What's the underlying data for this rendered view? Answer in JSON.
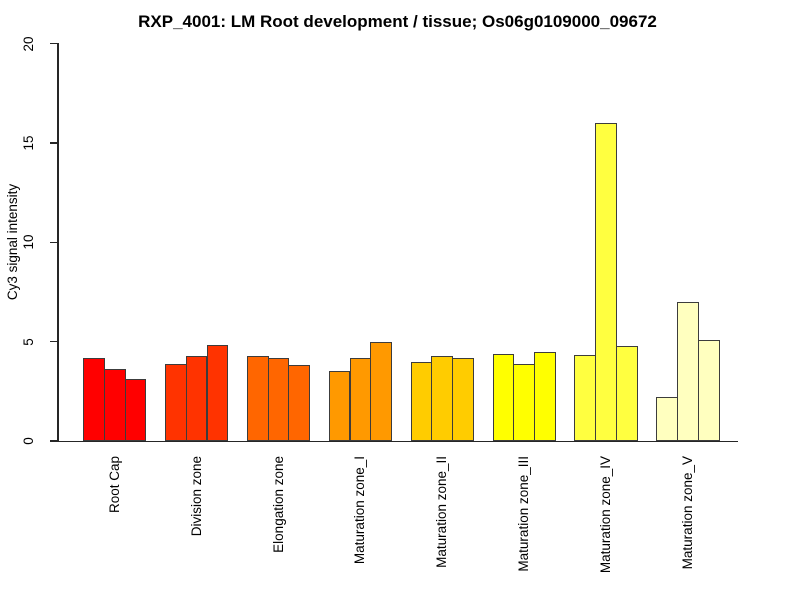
{
  "chart_data": {
    "type": "bar",
    "grouped": true,
    "bars_per_group": 3,
    "title": "RXP_4001: LM Root development / tissue; Os06g0109000_09672",
    "xlabel": "",
    "ylabel": "Cy3 signal intensity",
    "ylim": [
      0,
      20
    ],
    "yticks": [
      0,
      5,
      10,
      15,
      20
    ],
    "grid": false,
    "legend": "none",
    "background_color": "#FFFFFF",
    "axis_color": "#262626",
    "bar_border_color": "#3C3C3C",
    "groups": [
      {
        "label": "Root Cap",
        "color": "#FF0000",
        "values": [
          4.2,
          3.6,
          3.1
        ]
      },
      {
        "label": "Division zone",
        "color": "#FF3300",
        "values": [
          3.85,
          4.3,
          4.85
        ]
      },
      {
        "label": "Elongation zone",
        "color": "#FF6600",
        "values": [
          4.3,
          4.2,
          3.8
        ]
      },
      {
        "label": "Maturation zone_I",
        "color": "#FF9900",
        "values": [
          3.5,
          4.2,
          5.0
        ]
      },
      {
        "label": "Maturation zone_II",
        "color": "#FFCC00",
        "values": [
          3.95,
          4.3,
          4.2
        ]
      },
      {
        "label": "Maturation zone_III",
        "color": "#FFFF00",
        "values": [
          4.4,
          3.85,
          4.5
        ]
      },
      {
        "label": "Maturation zone_IV",
        "color": "#FFFF40",
        "values": [
          4.35,
          16.0,
          4.8
        ]
      },
      {
        "label": "Maturation zone_V",
        "color": "#FFFFBF",
        "values": [
          2.2,
          7.0,
          5.1
        ]
      }
    ]
  }
}
